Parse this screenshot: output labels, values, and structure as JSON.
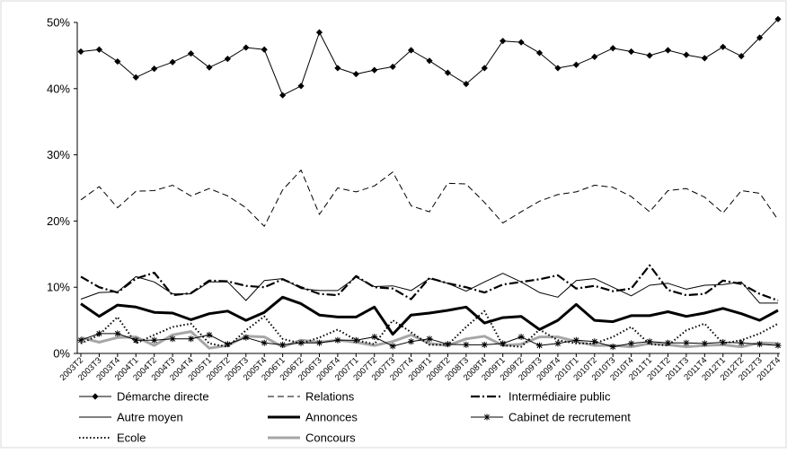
{
  "chart_data": {
    "type": "line",
    "title": "",
    "xlabel": "",
    "ylabel": "",
    "ylim": [
      0,
      0.5
    ],
    "yticks": [
      "0%",
      "10%",
      "20%",
      "30%",
      "40%",
      "50%"
    ],
    "grid": false,
    "legend": "bottom",
    "categories": [
      "2003T2",
      "2003T3",
      "2003T4",
      "2004T1",
      "2004T2",
      "2004T3",
      "2004T4",
      "2005T1",
      "2005T2",
      "2005T3",
      "2005T4",
      "2006T1",
      "2006T2",
      "2006T3",
      "2006T4",
      "2007T1",
      "2007T2",
      "2007T3",
      "2007T4",
      "2008T1",
      "2008T2",
      "2008T3",
      "2008T4",
      "2009T1",
      "2009T2",
      "2009T3",
      "2009T4",
      "2010T1",
      "2010T2",
      "2010T3",
      "2010T4",
      "2011T1",
      "2011T2",
      "2011T3",
      "2011T4",
      "2012T1",
      "2012T2",
      "2012T3",
      "2012T4"
    ],
    "series": [
      {
        "name": "Démarche directe",
        "style": "marker-diamond",
        "color": "#000000",
        "values": [
          0.456,
          0.459,
          0.441,
          0.417,
          0.43,
          0.44,
          0.453,
          0.432,
          0.445,
          0.462,
          0.459,
          0.39,
          0.404,
          0.485,
          0.431,
          0.422,
          0.428,
          0.433,
          0.458,
          0.442,
          0.424,
          0.407,
          0.431,
          0.472,
          0.47,
          0.454,
          0.431,
          0.436,
          0.448,
          0.461,
          0.456,
          0.45,
          0.458,
          0.451,
          0.446,
          0.463,
          0.449,
          0.477,
          0.505
        ]
      },
      {
        "name": "Relations",
        "style": "dashed",
        "color": "#000000",
        "values": [
          0.232,
          0.252,
          0.22,
          0.245,
          0.246,
          0.254,
          0.238,
          0.249,
          0.238,
          0.22,
          0.192,
          0.247,
          0.277,
          0.21,
          0.25,
          0.244,
          0.253,
          0.274,
          0.223,
          0.214,
          0.257,
          0.256,
          0.228,
          0.197,
          0.214,
          0.23,
          0.24,
          0.244,
          0.254,
          0.251,
          0.237,
          0.214,
          0.246,
          0.249,
          0.236,
          0.212,
          0.246,
          0.242,
          0.202
        ]
      },
      {
        "name": "Intermédiaire public",
        "style": "dashdot",
        "color": "#000000",
        "values": [
          0.116,
          0.1,
          0.092,
          0.113,
          0.122,
          0.088,
          0.091,
          0.11,
          0.109,
          0.102,
          0.1,
          0.112,
          0.1,
          0.09,
          0.088,
          0.117,
          0.1,
          0.098,
          0.082,
          0.114,
          0.106,
          0.1,
          0.092,
          0.104,
          0.108,
          0.112,
          0.118,
          0.098,
          0.102,
          0.094,
          0.098,
          0.133,
          0.096,
          0.088,
          0.09,
          0.11,
          0.105,
          0.09,
          0.08
        ]
      },
      {
        "name": "Autre moyen",
        "style": "thin-solid",
        "color": "#000000",
        "values": [
          0.082,
          0.092,
          0.093,
          0.116,
          0.108,
          0.09,
          0.09,
          0.108,
          0.108,
          0.08,
          0.11,
          0.113,
          0.098,
          0.095,
          0.095,
          0.115,
          0.101,
          0.102,
          0.095,
          0.113,
          0.106,
          0.094,
          0.108,
          0.121,
          0.108,
          0.092,
          0.085,
          0.11,
          0.113,
          0.1,
          0.087,
          0.103,
          0.106,
          0.097,
          0.103,
          0.104,
          0.108,
          0.076,
          0.076
        ]
      },
      {
        "name": "Annonces",
        "style": "thick-solid",
        "color": "#000000",
        "values": [
          0.075,
          0.056,
          0.073,
          0.07,
          0.062,
          0.061,
          0.051,
          0.06,
          0.064,
          0.05,
          0.062,
          0.085,
          0.075,
          0.058,
          0.055,
          0.055,
          0.07,
          0.029,
          0.058,
          0.061,
          0.065,
          0.07,
          0.046,
          0.054,
          0.056,
          0.036,
          0.05,
          0.074,
          0.05,
          0.048,
          0.057,
          0.057,
          0.063,
          0.056,
          0.061,
          0.068,
          0.06,
          0.05,
          0.065
        ]
      },
      {
        "name": "Cabinet de recrutement",
        "style": "marker-star",
        "color": "#000000",
        "values": [
          0.02,
          0.03,
          0.03,
          0.02,
          0.02,
          0.022,
          0.022,
          0.028,
          0.014,
          0.024,
          0.016,
          0.013,
          0.016,
          0.016,
          0.02,
          0.02,
          0.025,
          0.011,
          0.018,
          0.022,
          0.014,
          0.013,
          0.013,
          0.015,
          0.025,
          0.012,
          0.015,
          0.02,
          0.018,
          0.01,
          0.015,
          0.018,
          0.016,
          0.016,
          0.015,
          0.017,
          0.016,
          0.014,
          0.012
        ]
      },
      {
        "name": "Ecole",
        "style": "dotted",
        "color": "#000000",
        "values": [
          0.015,
          0.028,
          0.055,
          0.015,
          0.028,
          0.04,
          0.045,
          0.015,
          0.01,
          0.035,
          0.056,
          0.022,
          0.015,
          0.024,
          0.036,
          0.02,
          0.014,
          0.05,
          0.032,
          0.013,
          0.013,
          0.04,
          0.064,
          0.012,
          0.01,
          0.036,
          0.02,
          0.015,
          0.015,
          0.025,
          0.04,
          0.014,
          0.012,
          0.035,
          0.045,
          0.015,
          0.02,
          0.03,
          0.045
        ]
      },
      {
        "name": "Concours",
        "style": "gray-thick",
        "color": "#a6a6a6",
        "values": [
          0.024,
          0.017,
          0.024,
          0.025,
          0.012,
          0.028,
          0.033,
          0.008,
          0.012,
          0.026,
          0.025,
          0.01,
          0.02,
          0.017,
          0.02,
          0.017,
          0.012,
          0.018,
          0.028,
          0.015,
          0.012,
          0.022,
          0.026,
          0.012,
          0.014,
          0.025,
          0.025,
          0.018,
          0.012,
          0.012,
          0.01,
          0.015,
          0.013,
          0.01,
          0.012,
          0.013,
          0.01,
          0.016,
          0.015
        ]
      }
    ]
  }
}
